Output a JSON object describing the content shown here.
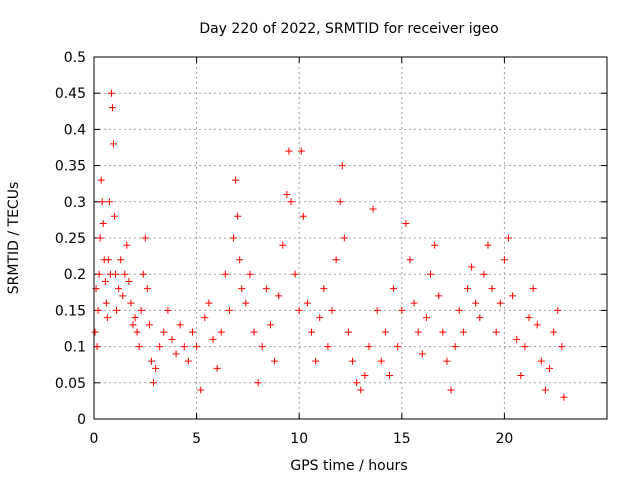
{
  "chart_data": {
    "type": "scatter",
    "title": "Day 220 of 2022, SRMTID for receiver igeo",
    "xlabel": "GPS time / hours",
    "ylabel": "SRMTID / TECUs",
    "xlim": [
      0,
      25
    ],
    "ylim": [
      0,
      0.5
    ],
    "xticks": [
      "0",
      "5",
      "10",
      "15",
      "20"
    ],
    "yticks": [
      "0",
      "0.05",
      "0.1",
      "0.15",
      "0.2",
      "0.25",
      "0.3",
      "0.35",
      "0.4",
      "0.45",
      "0.5"
    ],
    "grid": true,
    "marker": "+",
    "color": "#ff0000",
    "series": [
      {
        "name": "SRMTID",
        "points": [
          [
            0.05,
            0.12
          ],
          [
            0.1,
            0.18
          ],
          [
            0.15,
            0.1
          ],
          [
            0.2,
            0.15
          ],
          [
            0.25,
            0.2
          ],
          [
            0.3,
            0.25
          ],
          [
            0.35,
            0.33
          ],
          [
            0.4,
            0.3
          ],
          [
            0.45,
            0.27
          ],
          [
            0.5,
            0.22
          ],
          [
            0.55,
            0.19
          ],
          [
            0.6,
            0.16
          ],
          [
            0.65,
            0.14
          ],
          [
            0.7,
            0.22
          ],
          [
            0.75,
            0.3
          ],
          [
            0.8,
            0.2
          ],
          [
            0.85,
            0.45
          ],
          [
            0.9,
            0.43
          ],
          [
            0.95,
            0.38
          ],
          [
            1.0,
            0.28
          ],
          [
            1.05,
            0.2
          ],
          [
            1.1,
            0.15
          ],
          [
            1.2,
            0.18
          ],
          [
            1.3,
            0.22
          ],
          [
            1.4,
            0.17
          ],
          [
            1.5,
            0.2
          ],
          [
            1.6,
            0.24
          ],
          [
            1.7,
            0.19
          ],
          [
            1.8,
            0.16
          ],
          [
            1.9,
            0.13
          ],
          [
            2.0,
            0.14
          ],
          [
            2.1,
            0.12
          ],
          [
            2.2,
            0.1
          ],
          [
            2.3,
            0.15
          ],
          [
            2.4,
            0.2
          ],
          [
            2.5,
            0.25
          ],
          [
            2.6,
            0.18
          ],
          [
            2.7,
            0.13
          ],
          [
            2.8,
            0.08
          ],
          [
            2.9,
            0.05
          ],
          [
            3.0,
            0.07
          ],
          [
            3.2,
            0.1
          ],
          [
            3.4,
            0.12
          ],
          [
            3.6,
            0.15
          ],
          [
            3.8,
            0.11
          ],
          [
            4.0,
            0.09
          ],
          [
            4.2,
            0.13
          ],
          [
            4.4,
            0.1
          ],
          [
            4.6,
            0.08
          ],
          [
            4.8,
            0.12
          ],
          [
            5.0,
            0.1
          ],
          [
            5.2,
            0.04
          ],
          [
            5.4,
            0.14
          ],
          [
            5.6,
            0.16
          ],
          [
            5.8,
            0.11
          ],
          [
            6.0,
            0.07
          ],
          [
            6.2,
            0.12
          ],
          [
            6.4,
            0.2
          ],
          [
            6.6,
            0.15
          ],
          [
            6.8,
            0.25
          ],
          [
            6.9,
            0.33
          ],
          [
            7.0,
            0.28
          ],
          [
            7.1,
            0.22
          ],
          [
            7.2,
            0.18
          ],
          [
            7.4,
            0.16
          ],
          [
            7.6,
            0.2
          ],
          [
            7.8,
            0.12
          ],
          [
            8.0,
            0.05
          ],
          [
            8.2,
            0.1
          ],
          [
            8.4,
            0.18
          ],
          [
            8.6,
            0.13
          ],
          [
            8.8,
            0.08
          ],
          [
            9.0,
            0.17
          ],
          [
            9.2,
            0.24
          ],
          [
            9.4,
            0.31
          ],
          [
            9.5,
            0.37
          ],
          [
            9.6,
            0.3
          ],
          [
            9.8,
            0.2
          ],
          [
            10.0,
            0.15
          ],
          [
            10.1,
            0.37
          ],
          [
            10.2,
            0.28
          ],
          [
            10.4,
            0.16
          ],
          [
            10.6,
            0.12
          ],
          [
            10.8,
            0.08
          ],
          [
            11.0,
            0.14
          ],
          [
            11.2,
            0.18
          ],
          [
            11.4,
            0.1
          ],
          [
            11.6,
            0.15
          ],
          [
            11.8,
            0.22
          ],
          [
            12.0,
            0.3
          ],
          [
            12.1,
            0.35
          ],
          [
            12.2,
            0.25
          ],
          [
            12.4,
            0.12
          ],
          [
            12.6,
            0.08
          ],
          [
            12.8,
            0.05
          ],
          [
            13.0,
            0.04
          ],
          [
            13.2,
            0.06
          ],
          [
            13.4,
            0.1
          ],
          [
            13.6,
            0.29
          ],
          [
            13.8,
            0.15
          ],
          [
            14.0,
            0.08
          ],
          [
            14.2,
            0.12
          ],
          [
            14.4,
            0.06
          ],
          [
            14.6,
            0.18
          ],
          [
            14.8,
            0.1
          ],
          [
            15.0,
            0.15
          ],
          [
            15.2,
            0.27
          ],
          [
            15.4,
            0.22
          ],
          [
            15.6,
            0.16
          ],
          [
            15.8,
            0.12
          ],
          [
            16.0,
            0.09
          ],
          [
            16.2,
            0.14
          ],
          [
            16.4,
            0.2
          ],
          [
            16.6,
            0.24
          ],
          [
            16.8,
            0.17
          ],
          [
            17.0,
            0.12
          ],
          [
            17.2,
            0.08
          ],
          [
            17.4,
            0.04
          ],
          [
            17.6,
            0.1
          ],
          [
            17.8,
            0.15
          ],
          [
            18.0,
            0.12
          ],
          [
            18.2,
            0.18
          ],
          [
            18.4,
            0.21
          ],
          [
            18.6,
            0.16
          ],
          [
            18.8,
            0.14
          ],
          [
            19.0,
            0.2
          ],
          [
            19.2,
            0.24
          ],
          [
            19.4,
            0.18
          ],
          [
            19.6,
            0.12
          ],
          [
            19.8,
            0.16
          ],
          [
            20.0,
            0.22
          ],
          [
            20.2,
            0.25
          ],
          [
            20.4,
            0.17
          ],
          [
            20.6,
            0.11
          ],
          [
            20.8,
            0.06
          ],
          [
            21.0,
            0.1
          ],
          [
            21.2,
            0.14
          ],
          [
            21.4,
            0.18
          ],
          [
            21.6,
            0.13
          ],
          [
            21.8,
            0.08
          ],
          [
            22.0,
            0.04
          ],
          [
            22.2,
            0.07
          ],
          [
            22.4,
            0.12
          ],
          [
            22.6,
            0.15
          ],
          [
            22.8,
            0.1
          ],
          [
            22.9,
            0.03
          ]
        ]
      }
    ]
  }
}
